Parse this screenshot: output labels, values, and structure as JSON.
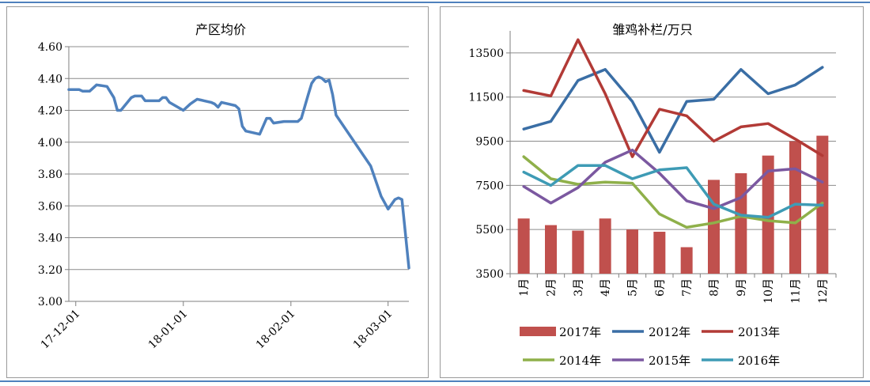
{
  "chart_data": [
    {
      "type": "line",
      "title": "产区均价",
      "xlabel": "",
      "ylabel": "",
      "ylim": [
        3.0,
        4.6
      ],
      "yticks": [
        "4.60",
        "4.40",
        "4.20",
        "4.00",
        "3.80",
        "3.60",
        "3.40",
        "3.20",
        "3.00"
      ],
      "xtick_labels": [
        "17-12-01",
        "18-01-01",
        "18-02-01",
        "18-03-01"
      ],
      "x_start": "2017-11-29",
      "x_end": "2018-03-07",
      "series": [
        {
          "color": "#4f81bd",
          "points": [
            [
              "2017-11-29",
              4.33
            ],
            [
              "2017-12-02",
              4.33
            ],
            [
              "2017-12-03",
              4.32
            ],
            [
              "2017-12-05",
              4.32
            ],
            [
              "2017-12-07",
              4.36
            ],
            [
              "2017-12-10",
              4.35
            ],
            [
              "2017-12-12",
              4.28
            ],
            [
              "2017-12-13",
              4.2
            ],
            [
              "2017-12-14",
              4.2
            ],
            [
              "2017-12-17",
              4.28
            ],
            [
              "2017-12-18",
              4.29
            ],
            [
              "2017-12-20",
              4.29
            ],
            [
              "2017-12-21",
              4.26
            ],
            [
              "2017-12-25",
              4.26
            ],
            [
              "2017-12-26",
              4.28
            ],
            [
              "2017-12-27",
              4.28
            ],
            [
              "2017-12-28",
              4.25
            ],
            [
              "2018-01-01",
              4.2
            ],
            [
              "2018-01-03",
              4.24
            ],
            [
              "2018-01-05",
              4.27
            ],
            [
              "2018-01-07",
              4.26
            ],
            [
              "2018-01-09",
              4.25
            ],
            [
              "2018-01-10",
              4.24
            ],
            [
              "2018-01-11",
              4.22
            ],
            [
              "2018-01-12",
              4.25
            ],
            [
              "2018-01-14",
              4.24
            ],
            [
              "2018-01-16",
              4.23
            ],
            [
              "2018-01-17",
              4.21
            ],
            [
              "2018-01-18",
              4.1
            ],
            [
              "2018-01-19",
              4.07
            ],
            [
              "2018-01-21",
              4.06
            ],
            [
              "2018-01-23",
              4.05
            ],
            [
              "2018-01-25",
              4.15
            ],
            [
              "2018-01-26",
              4.15
            ],
            [
              "2018-01-27",
              4.12
            ],
            [
              "2018-01-30",
              4.13
            ],
            [
              "2018-02-03",
              4.13
            ],
            [
              "2018-02-04",
              4.15
            ],
            [
              "2018-02-06",
              4.3
            ],
            [
              "2018-02-07",
              4.37
            ],
            [
              "2018-02-08",
              4.4
            ],
            [
              "2018-02-09",
              4.41
            ],
            [
              "2018-02-10",
              4.4
            ],
            [
              "2018-02-11",
              4.38
            ],
            [
              "2018-02-12",
              4.39
            ],
            [
              "2018-02-13",
              4.3
            ],
            [
              "2018-02-14",
              4.17
            ],
            [
              "2018-02-24",
              3.85
            ],
            [
              "2018-02-27",
              3.66
            ],
            [
              "2018-02-28",
              3.62
            ],
            [
              "2018-03-01",
              3.58
            ],
            [
              "2018-03-03",
              3.64
            ],
            [
              "2018-03-04",
              3.65
            ],
            [
              "2018-03-05",
              3.64
            ],
            [
              "2018-03-07",
              3.21
            ]
          ]
        }
      ]
    },
    {
      "type": "bar+line",
      "title": "雏鸡补栏/万只",
      "xlabel": "",
      "ylabel": "",
      "ylim": [
        3500,
        14500
      ],
      "yticks": [
        "13500",
        "11500",
        "9500",
        "7500",
        "5500",
        "3500"
      ],
      "categories": [
        "1月",
        "2月",
        "3月",
        "4月",
        "5月",
        "6月",
        "7月",
        "8月",
        "9月",
        "10月",
        "11月",
        "12月"
      ],
      "legend_placement": "bottom",
      "series": [
        {
          "name": "2017年",
          "type": "bar",
          "color": "#c0504d",
          "values": [
            6000,
            5700,
            5450,
            6000,
            5500,
            5400,
            4700,
            7750,
            8050,
            8850,
            9500,
            9750
          ]
        },
        {
          "name": "2012年",
          "type": "line",
          "color": "#3a6ea5",
          "values": [
            10050,
            10400,
            12250,
            12750,
            11300,
            9000,
            11300,
            11400,
            12750,
            11650,
            12050,
            12850
          ]
        },
        {
          "name": "2013年",
          "type": "line",
          "color": "#b23a36",
          "values": [
            11800,
            11550,
            14100,
            11650,
            8800,
            10950,
            10650,
            9500,
            10150,
            10300,
            9600,
            8850
          ]
        },
        {
          "name": "2014年",
          "type": "line",
          "color": "#8fb04a",
          "values": [
            8800,
            7800,
            7550,
            7650,
            7600,
            6200,
            5600,
            5800,
            6100,
            5900,
            5800,
            6700
          ]
        },
        {
          "name": "2015年",
          "type": "line",
          "color": "#7b58a0",
          "values": [
            7450,
            6700,
            7400,
            8550,
            9100,
            8050,
            6800,
            6450,
            6950,
            8150,
            8250,
            7650
          ]
        },
        {
          "name": "2016年",
          "type": "line",
          "color": "#3e9bb5",
          "values": [
            8100,
            7500,
            8400,
            8400,
            7800,
            8200,
            8300,
            6650,
            6150,
            6050,
            6650,
            6600
          ]
        }
      ]
    }
  ]
}
